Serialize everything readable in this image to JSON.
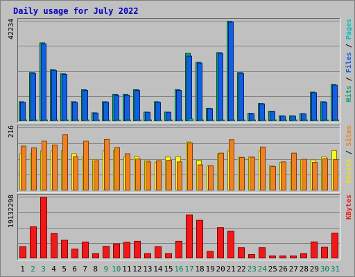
{
  "chart_data": {
    "type": "bar",
    "title": "Daily usage for July 2022",
    "categories": [
      "1",
      "2",
      "3",
      "4",
      "5",
      "6",
      "7",
      "8",
      "9",
      "10",
      "11",
      "12",
      "13",
      "14",
      "15",
      "16",
      "17",
      "18",
      "19",
      "20",
      "21",
      "22",
      "23",
      "24",
      "25",
      "26",
      "27",
      "28",
      "29",
      "30",
      "31"
    ],
    "weekend_days": [
      "2",
      "3",
      "9",
      "10",
      "16",
      "17",
      "23",
      "24",
      "30",
      "31"
    ],
    "panels": [
      {
        "id": "hits",
        "ymax_label": "42234",
        "ylim": [
          0,
          42234
        ],
        "legend": [
          {
            "name": "Pages",
            "color": "#00c0c0"
          },
          {
            "name": "Files",
            "color": "#1060e0"
          },
          {
            "name": "Hits",
            "color": "#10a070"
          }
        ],
        "series": [
          {
            "name": "Hits",
            "values": [
              8340,
              20600,
              33100,
              21800,
              20100,
              8340,
              13400,
              3680,
              8340,
              11400,
              11400,
              13400,
              3990,
              8340,
              3990,
              13400,
              28700,
              24900,
              5570,
              29000,
              42200,
              20600,
              3460,
              7570,
              4360,
              2440,
              2440,
              3350,
              12400,
              8340,
              15600
            ]
          },
          {
            "name": "Files",
            "values": [
              8100,
              20300,
              32700,
              21500,
              19800,
              8100,
              13100,
              3550,
              8100,
              11100,
              11100,
              13100,
              3860,
              8100,
              3860,
              13100,
              27500,
              24600,
              5420,
              28700,
              41800,
              20300,
              3330,
              7400,
              4240,
              2330,
              2330,
              3210,
              12100,
              8100,
              15300
            ]
          },
          {
            "name": "Pages",
            "values": [
              680,
              680,
              680,
              680,
              680,
              680,
              680,
              680,
              680,
              680,
              680,
              680,
              680,
              680,
              680,
              680,
              1100,
              680,
              680,
              680,
              680,
              680,
              680,
              680,
              680,
              680,
              680,
              680,
              680,
              680,
              680
            ]
          }
        ]
      },
      {
        "id": "visits",
        "ymax_label": "216",
        "ylim": [
          0,
          216
        ],
        "legend": [
          {
            "name": "Sites",
            "color": "#f08020"
          },
          {
            "name": "Visits",
            "color": "#e8e020"
          }
        ],
        "series": [
          {
            "name": "Visits",
            "values": [
              127,
              127,
              137,
              137,
              137,
              127,
              116,
              107,
              137,
              137,
              116,
              118,
              103,
              97,
              116,
              117,
              167,
              104,
              85,
              127,
              137,
              115,
              116,
              137,
              85,
              97,
              98,
              107,
              106,
              116,
              138
            ]
          },
          {
            "name": "Sites",
            "values": [
              153,
              147,
              170,
              157,
              192,
              117,
              170,
              103,
              176,
              148,
              127,
              109,
              99,
              103,
              104,
              99,
              164,
              89,
              86,
              129,
              175,
              114,
              115,
              150,
              83,
              99,
              129,
              108,
              97,
              110,
              107
            ]
          }
        ]
      },
      {
        "id": "kbytes",
        "ymax_label": "19132298",
        "ylim": [
          0,
          19132298
        ],
        "legend": [
          {
            "name": "KBytes",
            "color": "#e02020"
          }
        ],
        "series": [
          {
            "name": "KBytes",
            "values": [
              3740000,
              9900000,
              19100000,
              7800000,
              5730000,
              2990000,
              5170000,
              1560000,
              3810000,
              4610000,
              5090000,
              5400000,
              1560000,
              3740000,
              1560000,
              5400000,
              13600000,
              11900000,
              2250000,
              9630000,
              8500000,
              3400000,
              1280000,
              3400000,
              840000,
              840000,
              840000,
              1560000,
              5200000,
              3540000,
              7940000
            ]
          }
        ]
      }
    ]
  }
}
